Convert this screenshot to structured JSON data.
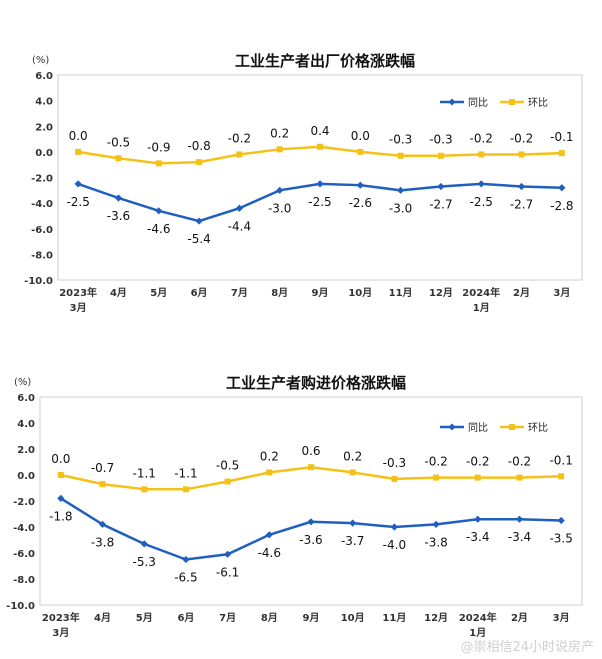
{
  "watermark": "@崇相信24小时说房产",
  "chart_data": [
    {
      "type": "line",
      "title": "工业生产者出厂价格涨跌幅",
      "unit_label": "(%)",
      "categories": [
        "2023年3月",
        "4月",
        "5月",
        "6月",
        "7月",
        "8月",
        "9月",
        "10月",
        "11月",
        "12月",
        "2024年1月",
        "2月",
        "3月"
      ],
      "y_ticks": [
        "6.0",
        "4.0",
        "2.0",
        "0.0",
        "-2.0",
        "-4.0",
        "-6.0",
        "-8.0",
        "-10.0"
      ],
      "ylim": [
        -10,
        6
      ],
      "legend_position": "top-right",
      "series": [
        {
          "name": "同比",
          "color": "#1f5fbf",
          "values": [
            -2.5,
            -3.6,
            -4.6,
            -5.4,
            -4.4,
            -3.0,
            -2.5,
            -2.6,
            -3.0,
            -2.7,
            -2.5,
            -2.7,
            -2.8
          ],
          "labels": [
            "-2.5",
            "-3.6",
            "-4.6",
            "-5.4",
            "-4.4",
            "-3.0",
            "-2.5",
            "-2.6",
            "-3.0",
            "-2.7",
            "-2.5",
            "-2.7",
            "-2.8"
          ]
        },
        {
          "name": "环比",
          "color": "#f5c116",
          "values": [
            0.0,
            -0.5,
            -0.9,
            -0.8,
            -0.2,
            0.2,
            0.4,
            0.0,
            -0.3,
            -0.3,
            -0.2,
            -0.2,
            -0.1
          ],
          "labels": [
            "0.0",
            "-0.5",
            "-0.9",
            "-0.8",
            "-0.2",
            "0.2",
            "0.4",
            "0.0",
            "-0.3",
            "-0.3",
            "-0.2",
            "-0.2",
            "-0.1"
          ]
        }
      ]
    },
    {
      "type": "line",
      "title": "工业生产者购进价格涨跌幅",
      "unit_label": "(%)",
      "categories": [
        "2023年3月",
        "4月",
        "5月",
        "6月",
        "7月",
        "8月",
        "9月",
        "10月",
        "11月",
        "12月",
        "2024年1月",
        "2月",
        "3月"
      ],
      "y_ticks": [
        "6.0",
        "4.0",
        "2.0",
        "0.0",
        "-2.0",
        "-4.0",
        "-6.0",
        "-8.0",
        "-10.0"
      ],
      "ylim": [
        -10,
        6
      ],
      "legend_position": "top-right",
      "series": [
        {
          "name": "同比",
          "color": "#1f5fbf",
          "values": [
            -1.8,
            -3.8,
            -5.3,
            -6.5,
            -6.1,
            -4.6,
            -3.6,
            -3.7,
            -4.0,
            -3.8,
            -3.4,
            -3.4,
            -3.5
          ],
          "labels": [
            "-1.8",
            "-3.8",
            "-5.3",
            "-6.5",
            "-6.1",
            "-4.6",
            "-3.6",
            "-3.7",
            "-4.0",
            "-3.8",
            "-3.4",
            "-3.4",
            "-3.5"
          ]
        },
        {
          "name": "环比",
          "color": "#f5c116",
          "values": [
            0.0,
            -0.7,
            -1.1,
            -1.1,
            -0.5,
            0.2,
            0.6,
            0.2,
            -0.3,
            -0.2,
            -0.2,
            -0.2,
            -0.1
          ],
          "labels": [
            "0.0",
            "-0.7",
            "-1.1",
            "-1.1",
            "-0.5",
            "0.2",
            "0.6",
            "0.2",
            "-0.3",
            "-0.2",
            "-0.2",
            "-0.2",
            "-0.1"
          ]
        }
      ]
    }
  ]
}
